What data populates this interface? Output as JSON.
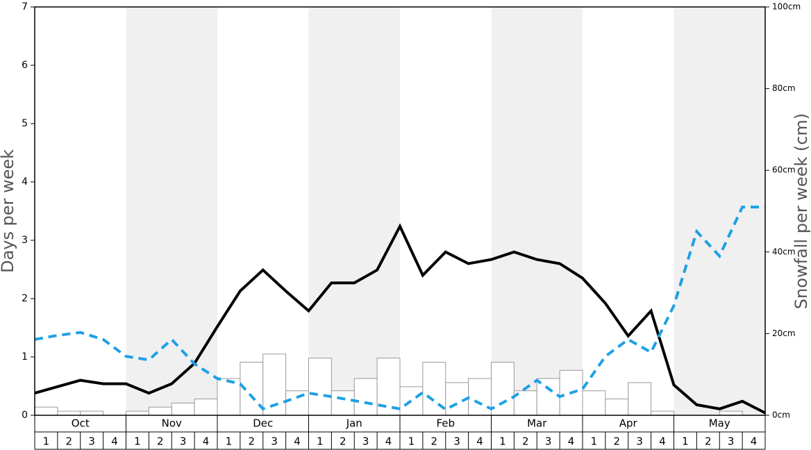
{
  "chart_data": {
    "type": "bar",
    "y_label": "Days per week",
    "y2_label": "Snowfall per week (cm)",
    "months": [
      "Oct",
      "Nov",
      "Dec",
      "Jan",
      "Feb",
      "Mar",
      "Apr",
      "May"
    ],
    "categories": [
      "1",
      "2",
      "3",
      "4",
      "1",
      "2",
      "3",
      "4",
      "1",
      "2",
      "3",
      "4",
      "1",
      "2",
      "3",
      "4",
      "1",
      "2",
      "3",
      "4",
      "1",
      "2",
      "3",
      "4",
      "1",
      "2",
      "3",
      "4",
      "1",
      "2",
      "3",
      "4"
    ],
    "ylim": [
      0,
      7
    ],
    "yticks": [
      0,
      1,
      2,
      3,
      4,
      5,
      6,
      7
    ],
    "y2lim": [
      0,
      100
    ],
    "y2ticks": [
      {
        "value": 0,
        "label": "0cm"
      },
      {
        "value": 20,
        "label": "20cm"
      },
      {
        "value": 40,
        "label": "40cm"
      },
      {
        "value": 60,
        "label": "60cm"
      },
      {
        "value": 80,
        "label": "80cm"
      },
      {
        "value": 100,
        "label": "100cm"
      }
    ],
    "xlim": [
      0,
      32
    ],
    "x": [
      0,
      1,
      2,
      3,
      4,
      5,
      6,
      7,
      8,
      9,
      10,
      11,
      12,
      13,
      14,
      15,
      16,
      17,
      18,
      19,
      20,
      21,
      22,
      23,
      24,
      25,
      26,
      27,
      28,
      29,
      30,
      31,
      32
    ],
    "bar_series": {
      "axis": "y2",
      "color": "#ffffff",
      "values": [
        2,
        1,
        1,
        0,
        1,
        2,
        3,
        4,
        9,
        13,
        15,
        6,
        14,
        6,
        9,
        14,
        7,
        13,
        8,
        9,
        13,
        6,
        9,
        11,
        6,
        4,
        8,
        1,
        0,
        0,
        1,
        0
      ]
    },
    "series": [
      {
        "color": "#000000",
        "dashed": false,
        "values": [
          0.38,
          0.49,
          0.6,
          0.54,
          0.54,
          0.38,
          0.54,
          0.89,
          1.52,
          2.13,
          2.49,
          2.13,
          1.79,
          2.27,
          2.27,
          2.49,
          3.24,
          2.4,
          2.8,
          2.6,
          2.67,
          2.8,
          2.67,
          2.6,
          2.35,
          1.92,
          1.36,
          1.79,
          0.52,
          0.18,
          0.11,
          0.24,
          0.04
        ]
      },
      {
        "color": "#1ea0e6",
        "dashed": true,
        "values": [
          1.3,
          1.37,
          1.42,
          1.3,
          1.01,
          0.95,
          1.3,
          0.88,
          0.63,
          0.54,
          0.11,
          0.24,
          0.38,
          0.32,
          0.25,
          0.18,
          0.11,
          0.39,
          0.1,
          0.3,
          0.11,
          0.32,
          0.6,
          0.32,
          0.45,
          1.01,
          1.3,
          1.08,
          1.88,
          3.15,
          2.73,
          3.57,
          3.57
        ]
      }
    ]
  }
}
